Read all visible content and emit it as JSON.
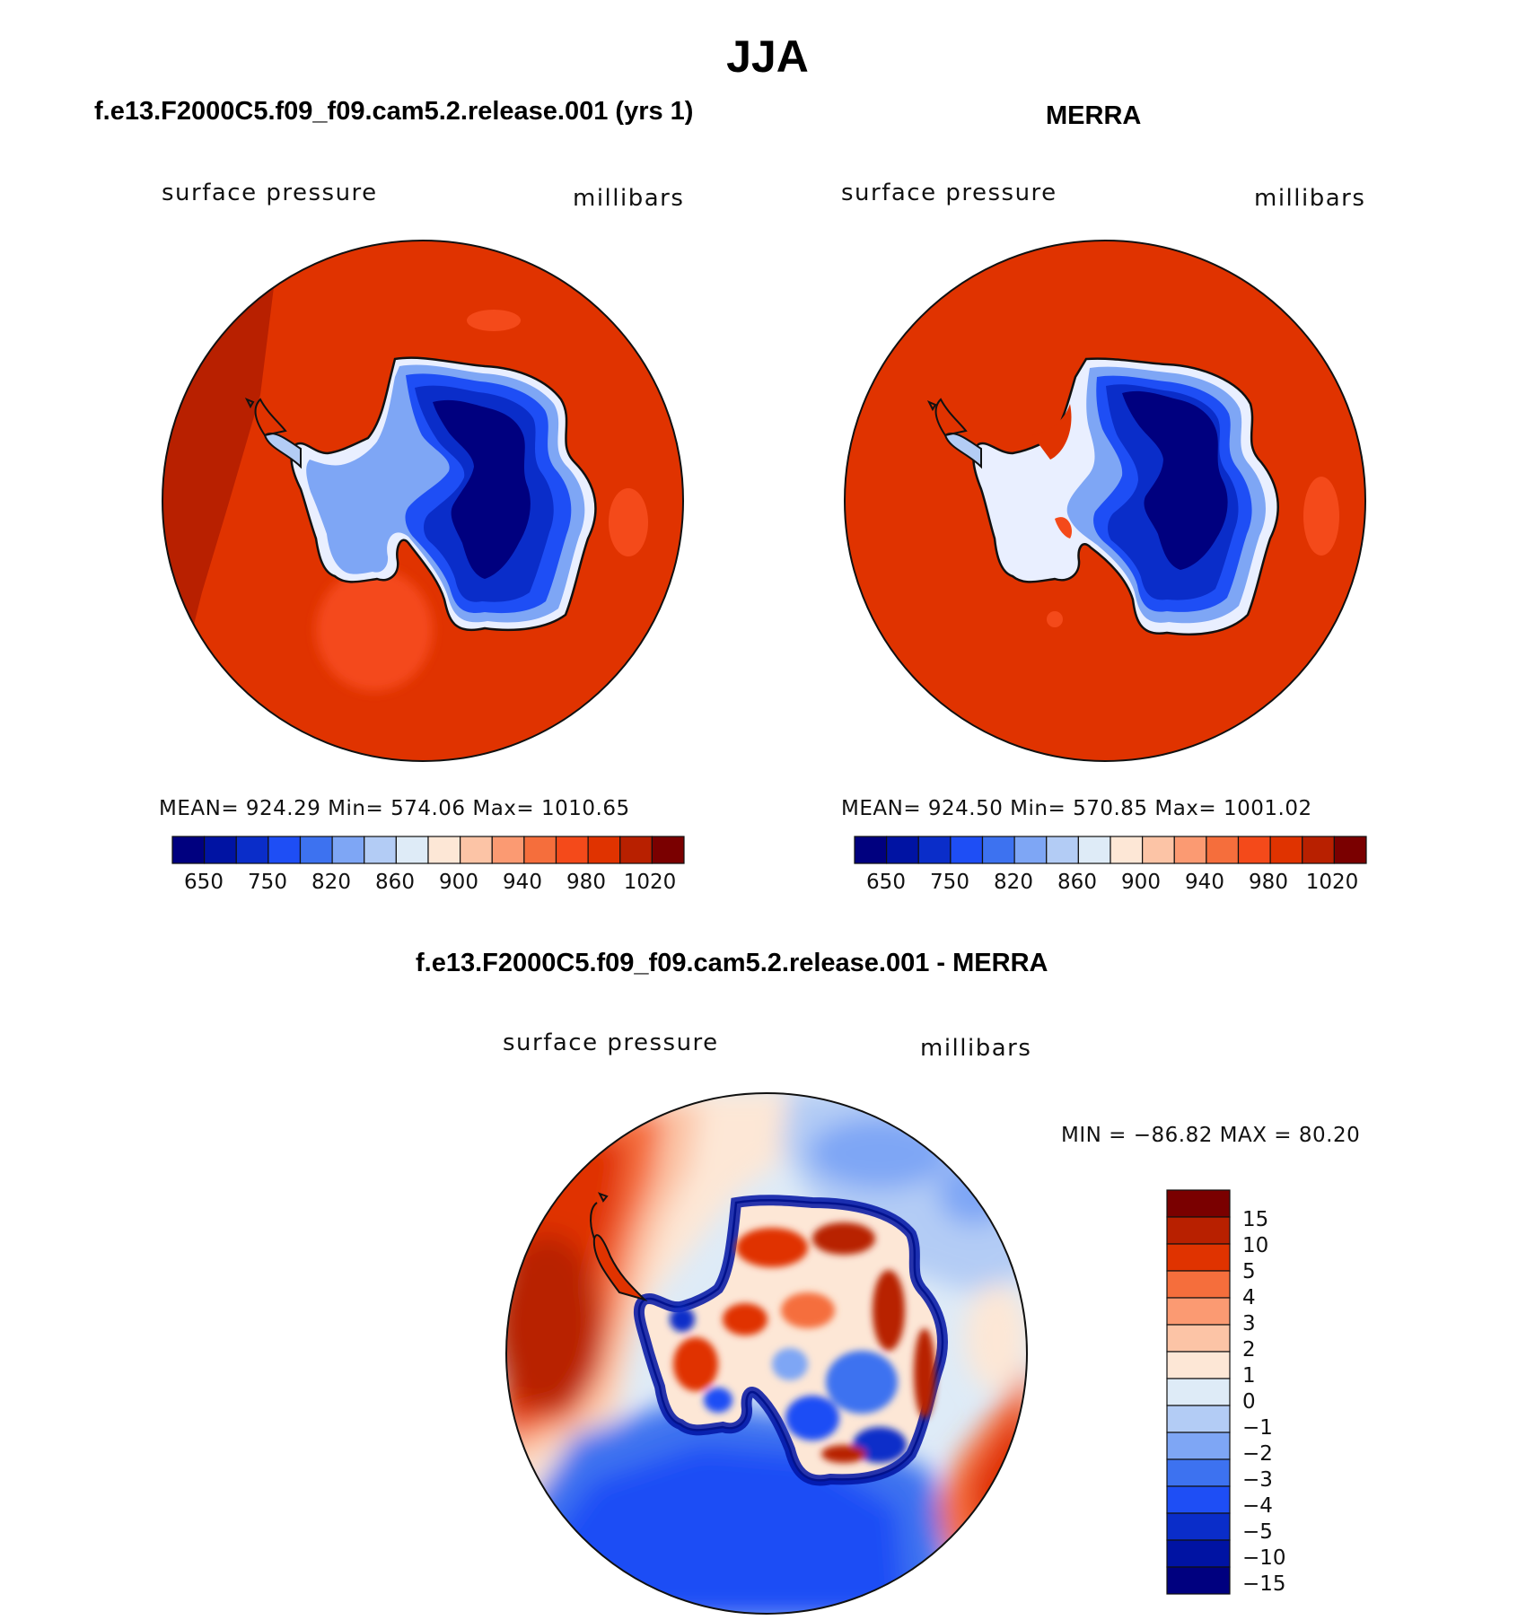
{
  "page_title": "JJA",
  "colors": {
    "abs_scale": [
      "#00007f",
      "#0013a3",
      "#0a2dc9",
      "#1e4ef5",
      "#3d72f0",
      "#7ea6f5",
      "#b3ccf5",
      "#deebf7",
      "#fde7d6",
      "#fcc4a6",
      "#fb9a72",
      "#f56e3c",
      "#f44a1a",
      "#e03300",
      "#b82000",
      "#7a0000"
    ],
    "diff_scale": [
      "#00007f",
      "#0013a3",
      "#0a2dc9",
      "#1e4ef5",
      "#3d72f0",
      "#7ea6f5",
      "#b3ccf5",
      "#deebf7",
      "#fde7d6",
      "#fcc4a6",
      "#fb9a72",
      "#f56e3c",
      "#e03300",
      "#b82000",
      "#7a0000"
    ]
  },
  "chart_data": [
    {
      "type": "heatmap",
      "projection": "south-polar stereographic",
      "title": "f.e13.F2000C5.f09_f09.cam5.2.release.001 (yrs 1)",
      "variable": "surface pressure",
      "units": "millibars",
      "stats_text": "MEAN=  924.29    Min=  574.06    Max=  1010.65",
      "stats": {
        "mean": 924.29,
        "min": 574.06,
        "max": 1010.65
      },
      "colorbar": {
        "orientation": "horizontal",
        "levels": [
          650,
          700,
          750,
          800,
          820,
          840,
          860,
          880,
          900,
          920,
          940,
          960,
          980,
          1000,
          1020
        ],
        "tick_labels": [
          "650",
          "750",
          "820",
          "860",
          "900",
          "940",
          "980",
          "1020"
        ]
      }
    },
    {
      "type": "heatmap",
      "projection": "south-polar stereographic",
      "title": "MERRA",
      "variable": "surface pressure",
      "units": "millibars",
      "stats_text": "MEAN=  924.50    Min=  570.85    Max=  1001.02",
      "stats": {
        "mean": 924.5,
        "min": 570.85,
        "max": 1001.02
      },
      "colorbar": {
        "orientation": "horizontal",
        "levels": [
          650,
          700,
          750,
          800,
          820,
          840,
          860,
          880,
          900,
          920,
          940,
          960,
          980,
          1000,
          1020
        ],
        "tick_labels": [
          "650",
          "750",
          "820",
          "860",
          "900",
          "940",
          "980",
          "1020"
        ]
      }
    },
    {
      "type": "heatmap",
      "projection": "south-polar stereographic",
      "title": "f.e13.F2000C5.f09_f09.cam5.2.release.001 - MERRA",
      "variable": "surface pressure",
      "units": "millibars",
      "stats_text": "MIN = −86.82  MAX =   80.20",
      "stats": {
        "min": -86.82,
        "max": 80.2
      },
      "colorbar": {
        "orientation": "vertical",
        "levels": [
          15,
          10,
          5,
          4,
          3,
          2,
          1,
          0,
          -1,
          -2,
          -3,
          -4,
          -5,
          -10,
          -15
        ],
        "tick_labels": [
          "15",
          "10",
          "5",
          "4",
          "3",
          "2",
          "1",
          "0",
          "−1",
          "−2",
          "−3",
          "−4",
          "−5",
          "−10",
          "−15"
        ]
      }
    }
  ]
}
